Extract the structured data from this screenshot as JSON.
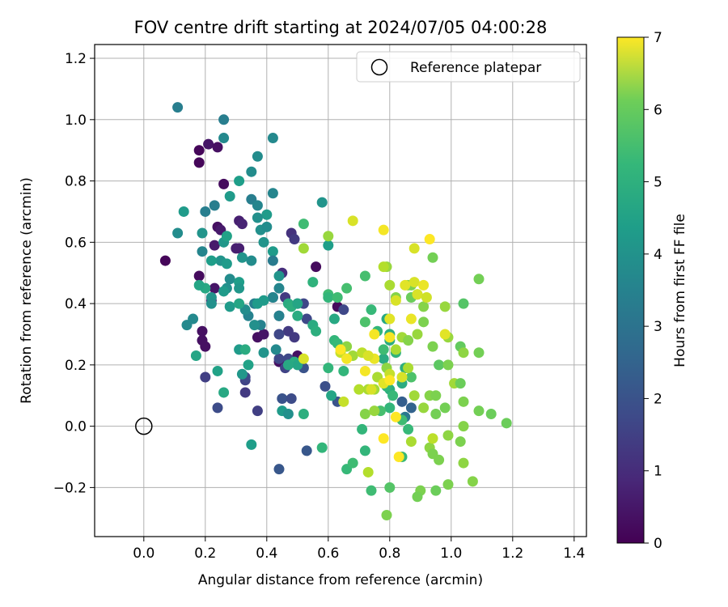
{
  "chart_data": {
    "type": "scatter",
    "title": "FOV centre drift starting at 2024/07/05 04:00:28",
    "xlabel": "Angular distance from reference (arcmin)",
    "ylabel": "Rotation from reference (arcmin)",
    "xlim": [
      -0.16,
      1.44
    ],
    "ylim": [
      -0.36,
      1.245
    ],
    "xticks": [
      0.0,
      0.2,
      0.4,
      0.6,
      0.8,
      1.0,
      1.2,
      1.4
    ],
    "xtick_labels": [
      "0.0",
      "0.2",
      "0.4",
      "0.6",
      "0.8",
      "1.0",
      "1.2",
      "1.4"
    ],
    "yticks": [
      -0.2,
      0.0,
      0.2,
      0.4,
      0.6,
      0.8,
      1.0,
      1.2
    ],
    "ytick_labels": [
      "−0.2",
      "0.0",
      "0.2",
      "0.4",
      "0.6",
      "0.8",
      "1.0",
      "1.2"
    ],
    "grid": true,
    "legend": {
      "position": "top-right",
      "entries": [
        "Reference platepar"
      ]
    },
    "reference_point": {
      "x": 0.0,
      "y": 0.0
    },
    "colorbar": {
      "label": "Hours from first FF file",
      "min": 0,
      "max": 7,
      "ticks": [
        0,
        1,
        2,
        3,
        4,
        5,
        6,
        7
      ],
      "tick_labels": [
        "0",
        "1",
        "2",
        "3",
        "4",
        "5",
        "6",
        "7"
      ],
      "colormap": "viridis"
    },
    "points": [
      [
        0.07,
        0.54,
        0.1
      ],
      [
        0.18,
        0.9,
        0.1
      ],
      [
        0.18,
        0.86,
        0.1
      ],
      [
        0.21,
        0.92,
        0.4
      ],
      [
        0.24,
        0.91,
        0.3
      ],
      [
        0.26,
        0.79,
        0.2
      ],
      [
        0.18,
        0.49,
        0.2
      ],
      [
        0.19,
        0.31,
        0.3
      ],
      [
        0.2,
        0.26,
        0.3
      ],
      [
        0.19,
        0.28,
        0.3
      ],
      [
        0.23,
        0.45,
        0.4
      ],
      [
        0.22,
        0.41,
        0.7
      ],
      [
        0.24,
        0.65,
        0.3
      ],
      [
        0.25,
        0.64,
        0.5
      ],
      [
        0.23,
        0.59,
        0.5
      ],
      [
        0.3,
        0.58,
        0.6
      ],
      [
        0.31,
        0.67,
        0.6
      ],
      [
        0.32,
        0.66,
        0.7
      ],
      [
        0.31,
        0.58,
        0.6
      ],
      [
        0.37,
        0.29,
        0.3
      ],
      [
        0.39,
        0.3,
        0.4
      ],
      [
        0.42,
        0.42,
        0.7
      ],
      [
        0.45,
        0.5,
        0.9
      ],
      [
        0.47,
        0.31,
        1.2
      ],
      [
        0.49,
        0.29,
        1.2
      ],
      [
        0.44,
        0.21,
        0.3
      ],
      [
        0.5,
        0.23,
        0.3
      ],
      [
        0.48,
        0.63,
        1.0
      ],
      [
        0.49,
        0.61,
        1.2
      ],
      [
        0.56,
        0.52,
        0.2
      ],
      [
        0.63,
        0.39,
        0.2
      ],
      [
        0.44,
        0.36,
        1.1
      ],
      [
        0.46,
        0.42,
        1.2
      ],
      [
        0.5,
        0.4,
        1.4
      ],
      [
        0.52,
        0.4,
        1.5
      ],
      [
        0.53,
        0.35,
        1.5
      ],
      [
        0.44,
        0.3,
        1.5
      ],
      [
        0.47,
        0.22,
        1.5
      ],
      [
        0.46,
        0.19,
        1.4
      ],
      [
        0.44,
        0.22,
        1.5
      ],
      [
        0.52,
        0.19,
        1.8
      ],
      [
        0.2,
        0.16,
        1.3
      ],
      [
        0.24,
        0.06,
        1.6
      ],
      [
        0.33,
        0.15,
        1.4
      ],
      [
        0.33,
        0.16,
        1.5
      ],
      [
        0.33,
        0.11,
        1.2
      ],
      [
        0.37,
        0.05,
        1.3
      ],
      [
        0.45,
        0.09,
        1.8
      ],
      [
        0.48,
        0.09,
        1.6
      ],
      [
        0.53,
        -0.08,
        1.9
      ],
      [
        0.44,
        -0.14,
        1.9
      ],
      [
        0.65,
        0.38,
        1.5
      ],
      [
        0.59,
        0.13,
        1.7
      ],
      [
        0.63,
        0.08,
        1.8
      ],
      [
        0.84,
        0.08,
        2.1
      ],
      [
        0.87,
        0.06,
        2.2
      ],
      [
        0.85,
        0.03,
        2.8
      ],
      [
        0.11,
        1.04,
        3.0
      ],
      [
        0.26,
        1.0,
        3.0
      ],
      [
        0.26,
        0.94,
        3.3
      ],
      [
        0.42,
        0.94,
        3.3
      ],
      [
        0.37,
        0.88,
        3.4
      ],
      [
        0.35,
        0.83,
        3.4
      ],
      [
        0.31,
        0.8,
        3.9
      ],
      [
        0.28,
        0.75,
        3.8
      ],
      [
        0.42,
        0.76,
        3.2
      ],
      [
        0.35,
        0.74,
        3.0
      ],
      [
        0.37,
        0.72,
        3.2
      ],
      [
        0.2,
        0.7,
        3.0
      ],
      [
        0.23,
        0.72,
        3.0
      ],
      [
        0.13,
        0.7,
        3.8
      ],
      [
        0.11,
        0.63,
        3.4
      ],
      [
        0.19,
        0.63,
        3.6
      ],
      [
        0.26,
        0.6,
        3.7
      ],
      [
        0.27,
        0.62,
        4.0
      ],
      [
        0.4,
        0.69,
        3.8
      ],
      [
        0.37,
        0.68,
        3.5
      ],
      [
        0.38,
        0.64,
        3.5
      ],
      [
        0.4,
        0.65,
        3.4
      ],
      [
        0.42,
        0.57,
        3.8
      ],
      [
        0.39,
        0.6,
        3.6
      ],
      [
        0.19,
        0.57,
        3.2
      ],
      [
        0.25,
        0.54,
        3.6
      ],
      [
        0.27,
        0.53,
        3.8
      ],
      [
        0.22,
        0.54,
        3.9
      ],
      [
        0.32,
        0.55,
        3.6
      ],
      [
        0.35,
        0.54,
        3.4
      ],
      [
        0.42,
        0.54,
        2.9
      ],
      [
        0.44,
        0.49,
        3.6
      ],
      [
        0.44,
        0.45,
        3.2
      ],
      [
        0.42,
        0.42,
        3.2
      ],
      [
        0.47,
        0.4,
        4.3
      ],
      [
        0.44,
        0.36,
        3.1
      ],
      [
        0.39,
        0.41,
        3.8
      ],
      [
        0.36,
        0.4,
        3.0
      ],
      [
        0.37,
        0.4,
        3.8
      ],
      [
        0.34,
        0.36,
        3.1
      ],
      [
        0.38,
        0.33,
        3.1
      ],
      [
        0.36,
        0.33,
        3.5
      ],
      [
        0.33,
        0.38,
        3.4
      ],
      [
        0.28,
        0.48,
        3.4
      ],
      [
        0.27,
        0.45,
        3.5
      ],
      [
        0.31,
        0.47,
        3.9
      ],
      [
        0.31,
        0.45,
        3.7
      ],
      [
        0.28,
        0.39,
        3.8
      ],
      [
        0.26,
        0.44,
        3.8
      ],
      [
        0.22,
        0.42,
        3.6
      ],
      [
        0.2,
        0.45,
        4.2
      ],
      [
        0.18,
        0.46,
        4.1
      ],
      [
        0.22,
        0.4,
        3.5
      ],
      [
        0.31,
        0.4,
        4.1
      ],
      [
        0.14,
        0.33,
        3.3
      ],
      [
        0.16,
        0.35,
        3.3
      ],
      [
        0.17,
        0.23,
        4.1
      ],
      [
        0.24,
        0.18,
        4.0
      ],
      [
        0.26,
        0.11,
        4.2
      ],
      [
        0.31,
        0.25,
        3.8
      ],
      [
        0.33,
        0.25,
        4.3
      ],
      [
        0.34,
        0.2,
        4.0
      ],
      [
        0.32,
        0.17,
        3.7
      ],
      [
        0.35,
        -0.06,
        3.9
      ],
      [
        0.39,
        0.24,
        3.6
      ],
      [
        0.43,
        0.25,
        3.3
      ],
      [
        0.45,
        0.05,
        3.8
      ],
      [
        0.47,
        0.04,
        3.5
      ],
      [
        0.49,
        0.21,
        4.3
      ],
      [
        0.52,
        0.04,
        4.4
      ],
      [
        0.5,
        0.2,
        4.1
      ],
      [
        0.47,
        0.2,
        4.2
      ],
      [
        0.48,
        0.39,
        4.4
      ],
      [
        0.5,
        0.4,
        4.1
      ],
      [
        0.5,
        0.36,
        4.3
      ],
      [
        0.55,
        0.33,
        4.3
      ],
      [
        0.55,
        0.47,
        4.5
      ],
      [
        0.56,
        0.31,
        4.4
      ],
      [
        0.52,
        0.66,
        4.8
      ],
      [
        0.58,
        0.73,
        3.6
      ],
      [
        0.6,
        0.59,
        3.9
      ],
      [
        0.58,
        -0.07,
        4.6
      ],
      [
        0.6,
        0.43,
        4.8
      ],
      [
        0.6,
        0.42,
        4.6
      ],
      [
        0.62,
        0.35,
        4.2
      ],
      [
        0.63,
        0.42,
        4.8
      ],
      [
        0.62,
        0.28,
        4.6
      ],
      [
        0.63,
        0.27,
        4.7
      ],
      [
        0.65,
        0.18,
        4.6
      ],
      [
        0.66,
        0.45,
        4.9
      ],
      [
        0.6,
        0.19,
        4.6
      ],
      [
        0.61,
        0.1,
        4.1
      ],
      [
        0.66,
        -0.14,
        4.7
      ],
      [
        0.68,
        -0.12,
        4.8
      ],
      [
        0.72,
        0.49,
        4.9
      ],
      [
        0.74,
        0.38,
        4.7
      ],
      [
        0.72,
        0.34,
        5.0
      ],
      [
        0.74,
        -0.21,
        4.8
      ],
      [
        0.71,
        -0.01,
        4.6
      ],
      [
        0.72,
        -0.08,
        4.6
      ],
      [
        0.76,
        0.31,
        4.6
      ],
      [
        0.78,
        0.22,
        4.3
      ],
      [
        0.78,
        0.25,
        4.8
      ],
      [
        0.79,
        0.35,
        4.2
      ],
      [
        0.8,
        0.12,
        4.4
      ],
      [
        0.79,
        0.13,
        4.6
      ],
      [
        0.81,
        0.1,
        4.7
      ],
      [
        0.8,
        0.28,
        4.3
      ],
      [
        0.82,
        0.24,
        4.5
      ],
      [
        0.85,
        0.19,
        4.4
      ],
      [
        0.84,
        0.14,
        4.3
      ],
      [
        0.8,
        0.3,
        4.8
      ],
      [
        0.8,
        0.3,
        4.4
      ],
      [
        0.8,
        0.06,
        4.6
      ],
      [
        0.86,
        -0.01,
        4.7
      ],
      [
        0.84,
        0.02,
        4.8
      ],
      [
        0.84,
        -0.1,
        4.7
      ],
      [
        0.87,
        0.16,
        5.0
      ],
      [
        0.8,
        -0.2,
        5.1
      ],
      [
        0.77,
        0.05,
        4.9
      ],
      [
        0.52,
        0.58,
        6.0
      ],
      [
        0.6,
        0.62,
        5.9
      ],
      [
        0.68,
        0.67,
        6.6
      ],
      [
        0.79,
        0.52,
        5.9
      ],
      [
        0.82,
        0.42,
        5.7
      ],
      [
        0.86,
        0.46,
        5.8
      ],
      [
        0.87,
        0.46,
        5.6
      ],
      [
        0.87,
        0.42,
        5.4
      ],
      [
        0.89,
        0.43,
        5.5
      ],
      [
        0.91,
        0.39,
        5.7
      ],
      [
        0.94,
        0.55,
        5.5
      ],
      [
        0.98,
        0.39,
        5.9
      ],
      [
        1.09,
        0.48,
        5.5
      ],
      [
        1.04,
        0.4,
        5.1
      ],
      [
        0.82,
        0.25,
        6.1
      ],
      [
        0.84,
        0.29,
        6.0
      ],
      [
        0.86,
        0.28,
        5.7
      ],
      [
        0.89,
        0.3,
        5.9
      ],
      [
        0.91,
        0.34,
        5.6
      ],
      [
        0.94,
        0.26,
        5.6
      ],
      [
        0.96,
        0.2,
        5.2
      ],
      [
        0.99,
        0.2,
        5.6
      ],
      [
        0.99,
        0.29,
        5.9
      ],
      [
        1.03,
        0.26,
        5.3
      ],
      [
        1.04,
        0.24,
        5.8
      ],
      [
        1.09,
        0.24,
        5.5
      ],
      [
        0.86,
        0.19,
        6.1
      ],
      [
        0.88,
        0.1,
        6.0
      ],
      [
        0.91,
        0.06,
        5.9
      ],
      [
        0.93,
        0.1,
        5.7
      ],
      [
        0.95,
        0.1,
        5.6
      ],
      [
        0.95,
        0.04,
        5.5
      ],
      [
        0.98,
        0.06,
        5.5
      ],
      [
        1.01,
        0.14,
        6.0
      ],
      [
        1.03,
        0.14,
        5.4
      ],
      [
        1.04,
        0.08,
        5.6
      ],
      [
        1.09,
        0.05,
        5.5
      ],
      [
        1.13,
        0.04,
        5.4
      ],
      [
        1.18,
        0.01,
        5.4
      ],
      [
        1.04,
        0.0,
        5.7
      ],
      [
        1.03,
        -0.05,
        5.6
      ],
      [
        0.99,
        -0.03,
        5.8
      ],
      [
        0.93,
        -0.07,
        5.8
      ],
      [
        0.94,
        -0.09,
        5.6
      ],
      [
        0.96,
        -0.11,
        5.6
      ],
      [
        0.94,
        -0.04,
        6.3
      ],
      [
        0.87,
        -0.05,
        6.1
      ],
      [
        0.9,
        -0.21,
        5.6
      ],
      [
        0.89,
        -0.23,
        5.5
      ],
      [
        0.95,
        -0.21,
        5.4
      ],
      [
        0.99,
        -0.19,
        5.6
      ],
      [
        1.04,
        -0.12,
        5.8
      ],
      [
        1.07,
        -0.18,
        5.7
      ],
      [
        0.79,
        -0.29,
        5.6
      ],
      [
        0.72,
        0.04,
        5.7
      ],
      [
        0.75,
        0.05,
        5.9
      ],
      [
        0.7,
        0.12,
        6.2
      ],
      [
        0.68,
        0.23,
        6.0
      ],
      [
        0.64,
        0.24,
        6.4
      ],
      [
        0.66,
        0.26,
        5.8
      ],
      [
        0.71,
        0.24,
        6.3
      ],
      [
        0.73,
        -0.15,
        6.2
      ],
      [
        0.73,
        0.12,
        6.1
      ],
      [
        0.75,
        0.12,
        6.0
      ],
      [
        0.76,
        0.16,
        6.1
      ],
      [
        0.79,
        0.19,
        5.8
      ],
      [
        0.8,
        0.17,
        6.4
      ],
      [
        0.84,
        0.16,
        6.6
      ],
      [
        0.78,
        0.52,
        6.2
      ],
      [
        0.8,
        0.46,
        6.1
      ],
      [
        0.88,
        0.58,
        6.6
      ],
      [
        0.8,
        0.35,
        6.7
      ],
      [
        0.8,
        0.29,
        6.9
      ],
      [
        0.87,
        0.35,
        6.8
      ],
      [
        0.88,
        0.47,
        6.6
      ],
      [
        0.89,
        0.43,
        6.6
      ],
      [
        0.92,
        0.42,
        6.5
      ],
      [
        0.93,
        0.61,
        7.0
      ],
      [
        0.85,
        0.46,
        6.7
      ],
      [
        0.91,
        0.46,
        6.8
      ],
      [
        0.98,
        0.3,
        6.7
      ],
      [
        0.75,
        0.3,
        6.9
      ],
      [
        0.78,
        0.64,
        6.9
      ],
      [
        0.82,
        0.41,
        6.6
      ],
      [
        0.72,
        0.18,
        6.9
      ],
      [
        0.75,
        0.22,
        6.8
      ],
      [
        0.78,
        0.14,
        6.7
      ],
      [
        0.74,
        0.12,
        6.6
      ],
      [
        0.66,
        0.22,
        6.9
      ],
      [
        0.64,
        0.25,
        7.0
      ],
      [
        0.8,
        0.15,
        7.0
      ],
      [
        0.82,
        0.03,
        7.0
      ],
      [
        0.78,
        -0.04,
        7.0
      ],
      [
        0.83,
        -0.1,
        7.0
      ],
      [
        0.73,
        0.23,
        6.6
      ],
      [
        0.52,
        0.22,
        6.6
      ],
      [
        0.65,
        0.08,
        6.4
      ]
    ]
  }
}
